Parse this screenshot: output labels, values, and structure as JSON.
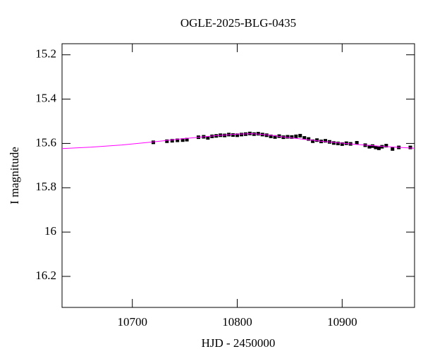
{
  "chart_data": {
    "type": "scatter",
    "title": "OGLE-2025-BLG-0435",
    "x_label": "HJD - 2450000",
    "y_label": "I magnitude",
    "xlim": [
      10633,
      10969
    ],
    "ylim": [
      15.15,
      16.34
    ],
    "y_inverted": true,
    "xticks": [
      10700,
      10800,
      10900
    ],
    "yticks": [
      15.2,
      15.4,
      15.6,
      15.8,
      16,
      16.2
    ],
    "series": [
      {
        "color": "#000000",
        "x": [
          10720,
          10733,
          10738,
          10743,
          10748,
          10752,
          10763,
          10768,
          10772,
          10776,
          10780,
          10784,
          10788,
          10792,
          10796,
          10800,
          10804,
          10808,
          10812,
          10816,
          10820,
          10824,
          10828,
          10832,
          10836,
          10840,
          10844,
          10848,
          10852,
          10856,
          10860,
          10864,
          10868,
          10872,
          10876,
          10880,
          10884,
          10888,
          10892,
          10896,
          10900,
          10904,
          10908,
          10914,
          10922,
          10926,
          10929,
          10932,
          10935,
          10938,
          10942,
          10948,
          10954,
          10965
        ],
        "values": [
          15.595,
          15.59,
          15.588,
          15.586,
          15.585,
          15.583,
          15.572,
          15.57,
          15.575,
          15.568,
          15.566,
          15.563,
          15.564,
          15.56,
          15.562,
          15.563,
          15.56,
          15.558,
          15.555,
          15.558,
          15.556,
          15.56,
          15.563,
          15.568,
          15.571,
          15.567,
          15.572,
          15.57,
          15.571,
          15.568,
          15.565,
          15.575,
          15.58,
          15.59,
          15.585,
          15.591,
          15.588,
          15.593,
          15.598,
          15.6,
          15.603,
          15.599,
          15.602,
          15.597,
          15.608,
          15.615,
          15.612,
          15.618,
          15.622,
          15.615,
          15.61,
          15.625,
          15.618,
          15.618
        ]
      },
      {
        "type": "line",
        "color": "#ff00ff",
        "x": [
          10633,
          10660,
          10690,
          10720,
          10750,
          10780,
          10800,
          10815,
          10830,
          10850,
          10880,
          10910,
          10940,
          10969
        ],
        "values": [
          15.623,
          15.617,
          15.607,
          15.593,
          15.578,
          15.565,
          15.558,
          15.556,
          15.562,
          15.574,
          15.59,
          15.603,
          15.614,
          15.622
        ]
      }
    ]
  }
}
